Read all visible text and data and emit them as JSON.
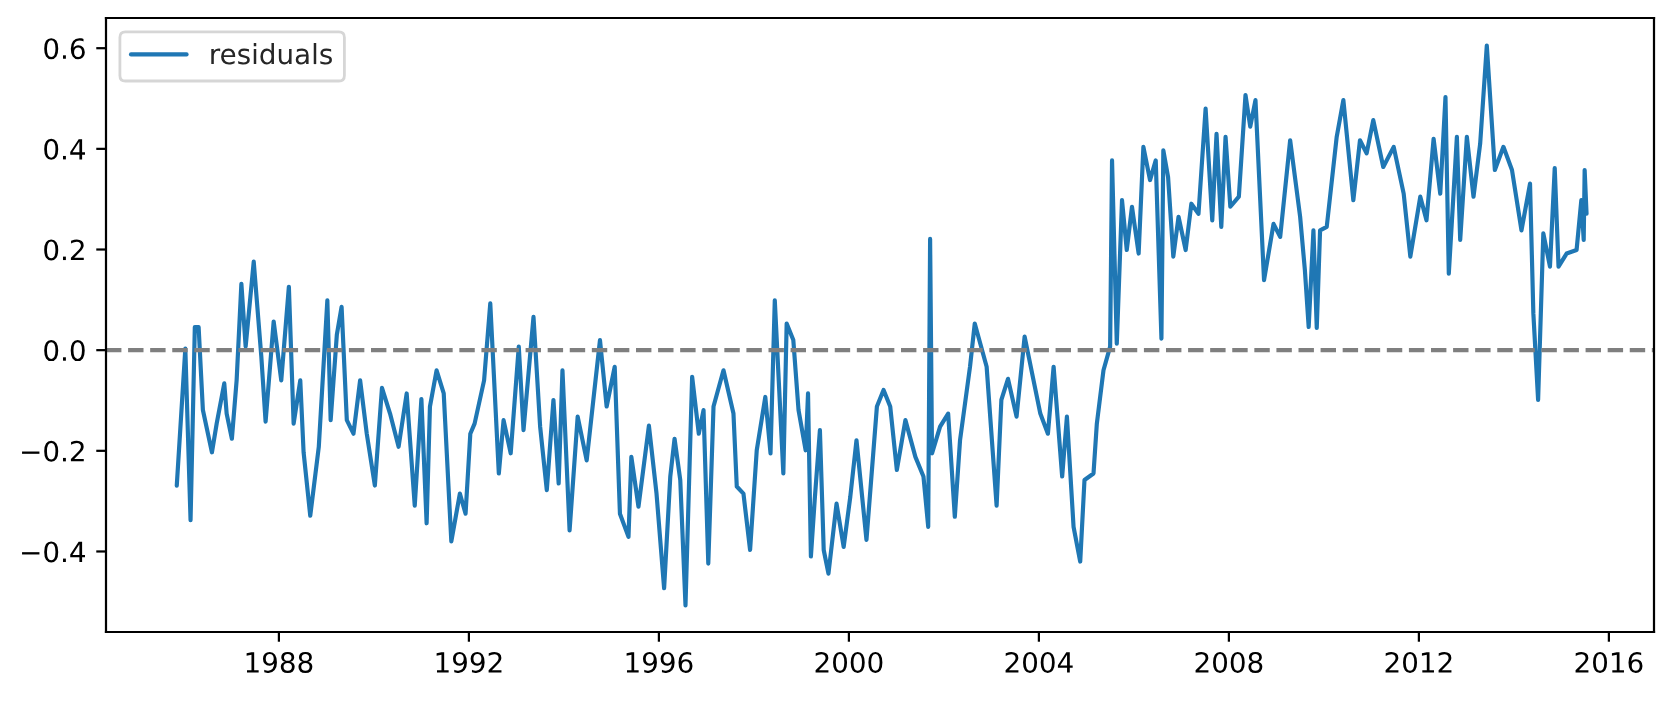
{
  "chart_data": {
    "type": "line",
    "x": [
      1985.85,
      1986.03,
      1986.14,
      1986.23,
      1986.31,
      1986.4,
      1986.59,
      1986.69,
      1986.85,
      1986.9,
      1987.01,
      1987.11,
      1987.21,
      1987.3,
      1987.47,
      1987.63,
      1987.72,
      1987.89,
      1988.05,
      1988.21,
      1988.31,
      1988.45,
      1988.52,
      1988.66,
      1988.84,
      1989.02,
      1989.09,
      1989.22,
      1989.32,
      1989.43,
      1989.57,
      1989.71,
      1989.85,
      1990.02,
      1990.17,
      1990.34,
      1990.52,
      1990.69,
      1990.86,
      1991.0,
      1991.11,
      1991.18,
      1991.32,
      1991.47,
      1991.63,
      1991.81,
      1991.93,
      1992.03,
      1992.12,
      1992.32,
      1992.45,
      1992.63,
      1992.73,
      1992.88,
      1993.05,
      1993.15,
      1993.36,
      1993.5,
      1993.64,
      1993.78,
      1993.89,
      1993.97,
      1994.12,
      1994.29,
      1994.48,
      1994.62,
      1994.76,
      1994.9,
      1995.07,
      1995.18,
      1995.36,
      1995.42,
      1995.57,
      1995.79,
      1995.95,
      1996.11,
      1996.24,
      1996.33,
      1996.45,
      1996.56,
      1996.7,
      1996.84,
      1996.94,
      1997.04,
      1997.15,
      1997.36,
      1997.57,
      1997.64,
      1997.78,
      1997.92,
      1998.06,
      1998.24,
      1998.35,
      1998.44,
      1998.62,
      1998.69,
      1998.83,
      1998.94,
      1999.09,
      1999.14,
      1999.2,
      1999.28,
      1999.39,
      1999.47,
      1999.57,
      1999.74,
      1999.89,
      2000.03,
      2000.16,
      2000.37,
      2000.59,
      2000.73,
      2000.87,
      2001.01,
      2001.19,
      2001.4,
      2001.57,
      2001.67,
      2001.71,
      2001.75,
      2001.92,
      2002.09,
      2002.23,
      2002.34,
      2002.55,
      2002.65,
      2002.9,
      2003.11,
      2003.21,
      2003.35,
      2003.53,
      2003.7,
      2004.03,
      2004.19,
      2004.31,
      2004.49,
      2004.59,
      2004.73,
      2004.87,
      2004.96,
      2005.15,
      2005.22,
      2005.36,
      2005.5,
      2005.54,
      2005.64,
      2005.75,
      2005.85,
      2005.96,
      2006.1,
      2006.2,
      2006.34,
      2006.46,
      2006.58,
      2006.62,
      2006.72,
      2006.83,
      2006.94,
      2007.09,
      2007.21,
      2007.36,
      2007.51,
      2007.65,
      2007.74,
      2007.84,
      2007.93,
      2008.03,
      2008.21,
      2008.35,
      2008.45,
      2008.56,
      2008.74,
      2008.94,
      2009.08,
      2009.29,
      2009.5,
      2009.6,
      2009.68,
      2009.78,
      2009.85,
      2009.92,
      2010.06,
      2010.27,
      2010.41,
      2010.62,
      2010.76,
      2010.9,
      2011.04,
      2011.25,
      2011.47,
      2011.68,
      2011.82,
      2012.03,
      2012.16,
      2012.31,
      2012.45,
      2012.56,
      2012.63,
      2012.8,
      2012.87,
      2013.01,
      2013.15,
      2013.29,
      2013.43,
      2013.6,
      2013.78,
      2013.96,
      2014.16,
      2014.34,
      2014.41,
      2014.51,
      2014.62,
      2014.76,
      2014.86,
      2014.94,
      2015.11,
      2015.32,
      2015.42,
      2015.47,
      2015.49,
      2015.53
    ],
    "series": [
      {
        "name": "residuals",
        "color": "#1f77b4",
        "values": [
          -0.269,
          0.003,
          -0.338,
          0.046,
          0.046,
          -0.119,
          -0.203,
          -0.146,
          -0.066,
          -0.126,
          -0.176,
          -0.06,
          0.132,
          0.007,
          0.176,
          -0.013,
          -0.142,
          0.057,
          -0.06,
          0.126,
          -0.146,
          -0.06,
          -0.203,
          -0.329,
          -0.192,
          0.099,
          -0.139,
          0.031,
          0.086,
          -0.139,
          -0.166,
          -0.06,
          -0.166,
          -0.269,
          -0.075,
          -0.126,
          -0.192,
          -0.086,
          -0.309,
          -0.097,
          -0.344,
          -0.112,
          -0.04,
          -0.086,
          -0.38,
          -0.285,
          -0.325,
          -0.166,
          -0.146,
          -0.06,
          0.093,
          -0.245,
          -0.139,
          -0.205,
          0.007,
          -0.159,
          0.066,
          -0.152,
          -0.278,
          -0.099,
          -0.265,
          -0.04,
          -0.358,
          -0.132,
          -0.219,
          -0.099,
          0.02,
          -0.112,
          -0.033,
          -0.325,
          -0.371,
          -0.212,
          -0.311,
          -0.15,
          -0.285,
          -0.473,
          -0.251,
          -0.176,
          -0.258,
          -0.507,
          -0.053,
          -0.166,
          -0.119,
          -0.424,
          -0.112,
          -0.04,
          -0.126,
          -0.271,
          -0.285,
          -0.397,
          -0.199,
          -0.093,
          -0.205,
          0.099,
          -0.245,
          0.053,
          0.02,
          -0.119,
          -0.199,
          -0.086,
          -0.41,
          -0.298,
          -0.159,
          -0.397,
          -0.444,
          -0.305,
          -0.391,
          -0.291,
          -0.179,
          -0.377,
          -0.112,
          -0.079,
          -0.112,
          -0.238,
          -0.139,
          -0.212,
          -0.251,
          -0.351,
          0.221,
          -0.205,
          -0.152,
          -0.126,
          -0.331,
          -0.179,
          -0.033,
          0.053,
          -0.033,
          -0.309,
          -0.099,
          -0.057,
          -0.132,
          0.027,
          -0.126,
          -0.166,
          -0.033,
          -0.251,
          -0.132,
          -0.351,
          -0.42,
          -0.258,
          -0.245,
          -0.146,
          -0.04,
          0.007,
          0.377,
          0.013,
          0.298,
          0.199,
          0.285,
          0.192,
          0.404,
          0.338,
          0.377,
          0.023,
          0.397,
          0.344,
          0.186,
          0.265,
          0.199,
          0.291,
          0.271,
          0.48,
          0.258,
          0.43,
          0.245,
          0.424,
          0.285,
          0.305,
          0.507,
          0.444,
          0.497,
          0.139,
          0.251,
          0.225,
          0.417,
          0.265,
          0.159,
          0.046,
          0.238,
          0.044,
          0.238,
          0.245,
          0.424,
          0.497,
          0.298,
          0.417,
          0.391,
          0.457,
          0.364,
          0.404,
          0.311,
          0.186,
          0.305,
          0.258,
          0.42,
          0.311,
          0.503,
          0.152,
          0.424,
          0.219,
          0.424,
          0.305,
          0.41,
          0.605,
          0.358,
          0.404,
          0.358,
          0.238,
          0.331,
          0.073,
          -0.099,
          0.232,
          0.166,
          0.362,
          0.166,
          0.192,
          0.199,
          0.298,
          0.219,
          0.358,
          0.271
        ]
      }
    ],
    "xlim": [
      1984.36,
      2016.95
    ],
    "xticks": [
      1988,
      1992,
      1996,
      2000,
      2004,
      2008,
      2012,
      2016
    ],
    "ylim": [
      -0.56,
      0.66
    ],
    "yticks": [
      {
        "value": -0.4,
        "label": "−0.4"
      },
      {
        "value": -0.2,
        "label": "−0.2"
      },
      {
        "value": 0.0,
        "label": "0.0"
      },
      {
        "value": 0.2,
        "label": "0.2"
      },
      {
        "value": 0.4,
        "label": "0.4"
      },
      {
        "value": 0.6,
        "label": "0.6"
      }
    ],
    "ref_lines": [
      {
        "axis": "y",
        "value": 0.0,
        "label": null,
        "color": "#7f7f7f",
        "line_style": "dashed"
      }
    ],
    "legend": "top left",
    "grid": false
  }
}
